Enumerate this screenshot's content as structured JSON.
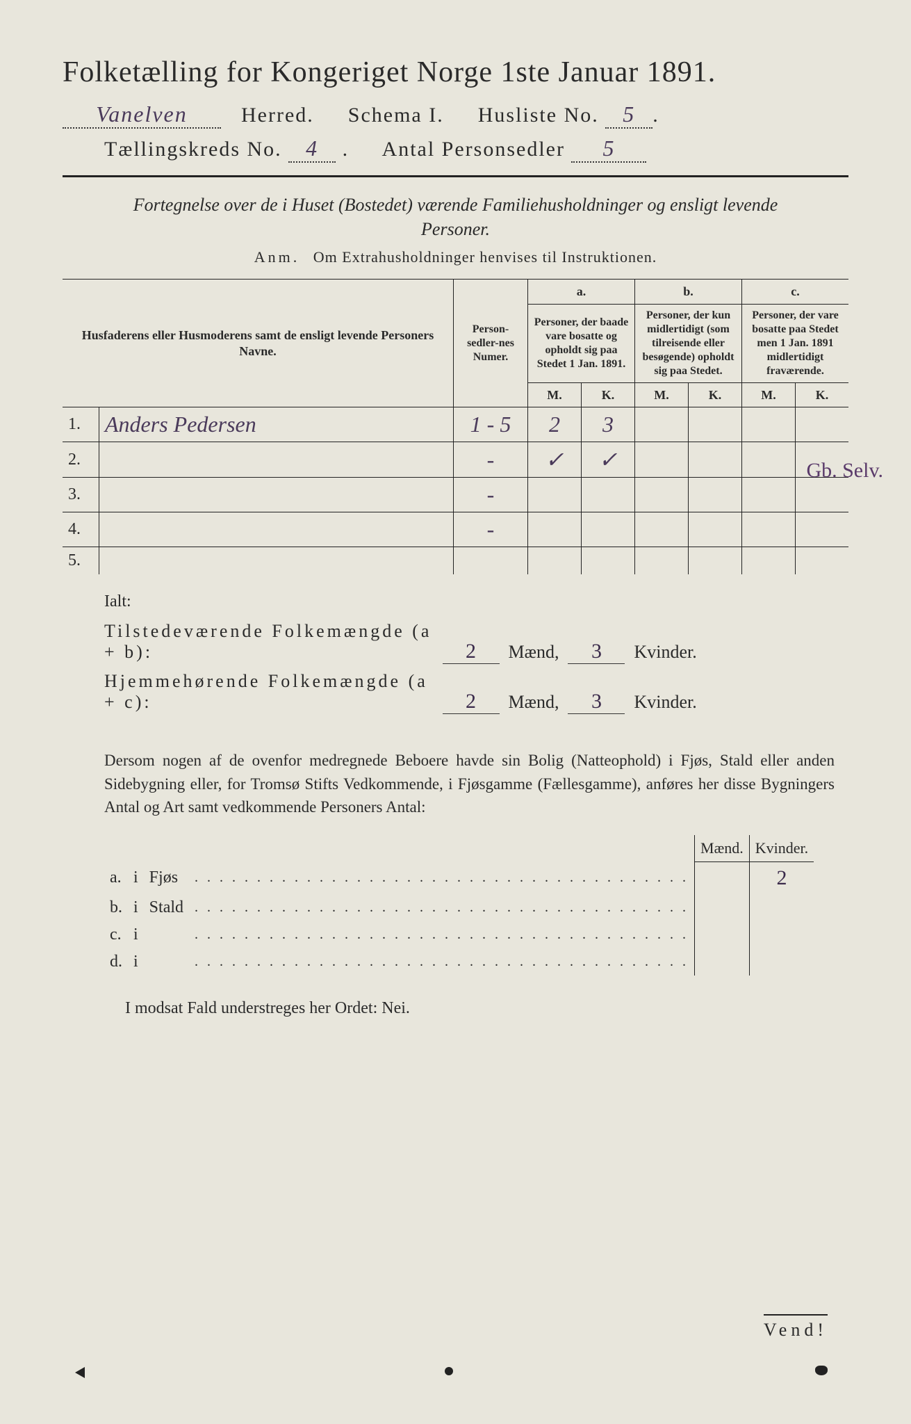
{
  "title": "Folketælling for Kongeriget Norge 1ste Januar 1891.",
  "header": {
    "herred_value": "Vanelven",
    "herred_label": "Herred.",
    "schema_label": "Schema I.",
    "husliste_label": "Husliste No.",
    "husliste_value": "5",
    "kreds_label": "Tællingskreds No.",
    "kreds_value": "4",
    "antal_label": "Antal Personsedler",
    "antal_value": "5"
  },
  "subtitle": "Fortegnelse over de i Huset (Bostedet) værende Familiehusholdninger og ensligt levende Personer.",
  "anm_label": "Anm.",
  "anm_text": "Om Extrahusholdninger henvises til Instruktionen.",
  "table": {
    "col_name": "Husfaderens eller Husmoderens samt de ensligt levende Personers Navne.",
    "col_person": "Person-sedler-nes Numer.",
    "col_a_label": "a.",
    "col_a": "Personer, der baade vare bosatte og opholdt sig paa Stedet 1 Jan. 1891.",
    "col_b_label": "b.",
    "col_b": "Personer, der kun midlertidigt (som tilreisende eller besøgende) opholdt sig paa Stedet.",
    "col_c_label": "c.",
    "col_c": "Personer, der vare bosatte paa Stedet men 1 Jan. 1891 midlertidigt fraværende.",
    "m": "M.",
    "k": "K.",
    "rows": [
      {
        "n": "1.",
        "name": "Anders Pedersen",
        "person": "1 - 5",
        "a_m": "2",
        "a_k": "3",
        "b_m": "",
        "b_k": "",
        "c_m": "",
        "c_k": ""
      },
      {
        "n": "2.",
        "name": "",
        "person": "-",
        "a_m": "✓",
        "a_k": "✓",
        "b_m": "",
        "b_k": "",
        "c_m": "",
        "c_k": ""
      },
      {
        "n": "3.",
        "name": "",
        "person": "-",
        "a_m": "",
        "a_k": "",
        "b_m": "",
        "b_k": "",
        "c_m": "",
        "c_k": ""
      },
      {
        "n": "4.",
        "name": "",
        "person": "-",
        "a_m": "",
        "a_k": "",
        "b_m": "",
        "b_k": "",
        "c_m": "",
        "c_k": ""
      },
      {
        "n": "5.",
        "name": "",
        "person": "",
        "a_m": "",
        "a_k": "",
        "b_m": "",
        "b_k": "",
        "c_m": "",
        "c_k": ""
      }
    ],
    "margin_note": "Gb. Selv."
  },
  "ialt": {
    "label": "Ialt:",
    "row1_label": "Tilstedeværende Folkemængde (a + b):",
    "row2_label": "Hjemmehørende Folkemængde (a + c):",
    "maend": "Mænd,",
    "kvinder": "Kvinder.",
    "r1_m": "2",
    "r1_k": "3",
    "r2_m": "2",
    "r2_k": "3"
  },
  "paragraph": "Dersom nogen af de ovenfor medregnede Beboere havde sin Bolig (Natteophold) i Fjøs, Stald eller anden Sidebygning eller, for Tromsø Stifts Vedkommende, i Fjøsgamme (Fællesgamme), anføres her disse Bygningers Antal og Art samt vedkommende Personers Antal:",
  "buildings": {
    "maend": "Mænd.",
    "kvinder": "Kvinder.",
    "rows": [
      {
        "l": "a.",
        "i": "i",
        "label": "Fjøs",
        "m": "",
        "k": "2"
      },
      {
        "l": "b.",
        "i": "i",
        "label": "Stald",
        "m": "",
        "k": ""
      },
      {
        "l": "c.",
        "i": "i",
        "label": "",
        "m": "",
        "k": ""
      },
      {
        "l": "d.",
        "i": "i",
        "label": "",
        "m": "",
        "k": ""
      }
    ]
  },
  "nei": "I modsat Fald understreges her Ordet: Nei.",
  "vend": "Vend!",
  "colors": {
    "paper": "#e8e6dc",
    "ink": "#2a2a2a",
    "handwriting": "#4a3a5a"
  }
}
